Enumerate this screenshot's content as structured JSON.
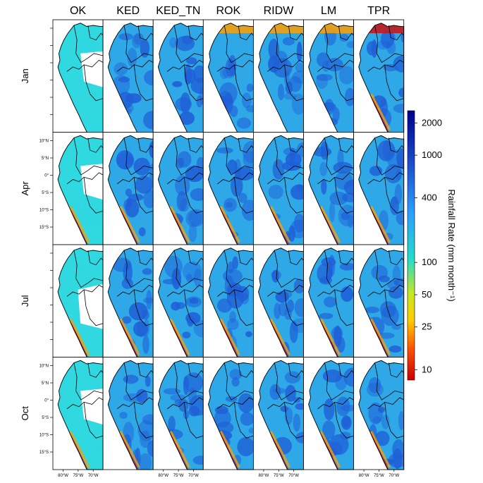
{
  "columns": [
    "OK",
    "KED",
    "KED_TN",
    "ROK",
    "RIDW",
    "LM",
    "TPR"
  ],
  "rows": [
    "Jan",
    "Apr",
    "Jul",
    "Oct"
  ],
  "lat_ticks": [
    "10°N",
    "5°N",
    "0°",
    "5°S",
    "10°S",
    "15°S"
  ],
  "lon_ticks": [
    "80°W",
    "75°W",
    "70°W"
  ],
  "colorbar": {
    "label": "Rainfall Rate (mm month⁻¹)",
    "ticks": [
      "2000",
      "1000",
      "400",
      "100",
      "50",
      "25",
      "10"
    ],
    "tick_values": [
      2000,
      1000,
      400,
      100,
      50,
      25,
      10
    ],
    "range": [
      8,
      2600
    ],
    "scale": "log",
    "colors": [
      "#cc0000",
      "#ff6600",
      "#ffdd00",
      "#22ddcc",
      "#2277ff",
      "#0000aa"
    ]
  },
  "panel_colors": {
    "wet": "#1f5fd6",
    "mid": "#2fa8e8",
    "dry": "#d01010",
    "warm": "#ffa000",
    "cyan": "#30d8e0"
  }
}
